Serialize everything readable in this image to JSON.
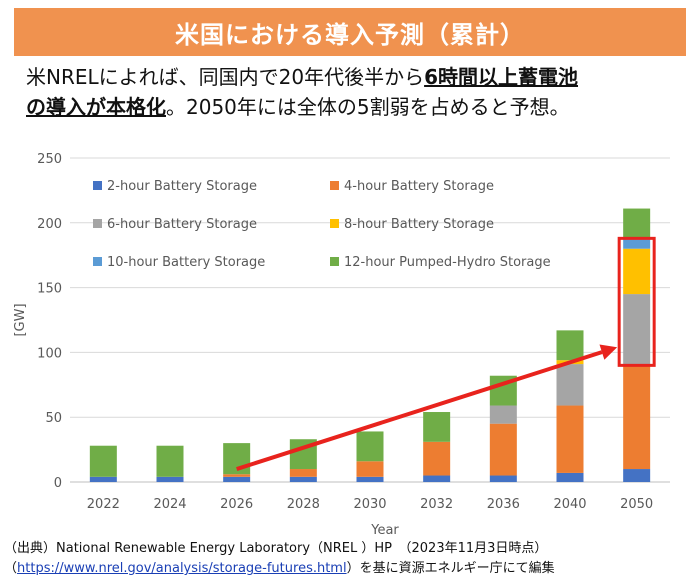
{
  "header": {
    "title": "米国における導入予測（累計）"
  },
  "lead": {
    "line1_plain": "米NRELによれば、同国内で20年代後半から",
    "line1_em": "6時間以上蓄電池",
    "line2_em": "の導入が本格化",
    "line2_plain": "。2050年には全体の5割弱を占めると予想。"
  },
  "source": {
    "line1": "（出典）National Renewable Energy Laboratory（NREL ）HP　（2023年11月3日時点）",
    "paren_open": "（",
    "link": "https://www.nrel.gov/analysis/storage-futures.html",
    "line2_rest": "）を基に資源エネルギー庁にて編集"
  },
  "colors": {
    "banner": "#f0924f",
    "arrow": "#e8231d",
    "highlight_box": "#e8231d"
  },
  "chart_data": {
    "type": "bar",
    "stacked": true,
    "categories": [
      "2022",
      "2024",
      "2026",
      "2028",
      "2030",
      "2032",
      "2036",
      "2040",
      "2050"
    ],
    "xlabel": "Year",
    "ylabel": "[GW]",
    "ylim": [
      0,
      250
    ],
    "yticks": [
      0,
      50,
      100,
      150,
      200,
      250
    ],
    "grid": true,
    "legend_position": "top-left",
    "series": [
      {
        "name": "2-hour Battery Storage",
        "color": "#4472c4",
        "values": [
          4,
          4,
          4,
          4,
          4,
          5,
          5,
          7,
          10
        ]
      },
      {
        "name": "4-hour Battery Storage",
        "color": "#ed7d31",
        "values": [
          0,
          0,
          2,
          6,
          12,
          26,
          40,
          52,
          80
        ]
      },
      {
        "name": "6-hour Battery Storage",
        "color": "#a5a5a5",
        "values": [
          0,
          0,
          0,
          0,
          0,
          0,
          14,
          32,
          55
        ]
      },
      {
        "name": "8-hour Battery Storage",
        "color": "#ffc000",
        "values": [
          0,
          0,
          0,
          0,
          0,
          0,
          0,
          3,
          35
        ]
      },
      {
        "name": "10-hour Battery Storage",
        "color": "#5b9bd5",
        "values": [
          0,
          0,
          0,
          0,
          0,
          0,
          0,
          0,
          8
        ]
      },
      {
        "name": "12-hour Pumped-Hydro Storage",
        "color": "#70ad47",
        "values": [
          24,
          24,
          24,
          23,
          23,
          23,
          23,
          23,
          23
        ]
      }
    ],
    "annotations": {
      "arrow_from": {
        "category": "2026",
        "value": 10
      },
      "arrow_to": {
        "category": "2050",
        "value": 104
      },
      "highlight": {
        "category": "2050",
        "from": 90,
        "to": 188
      }
    }
  }
}
